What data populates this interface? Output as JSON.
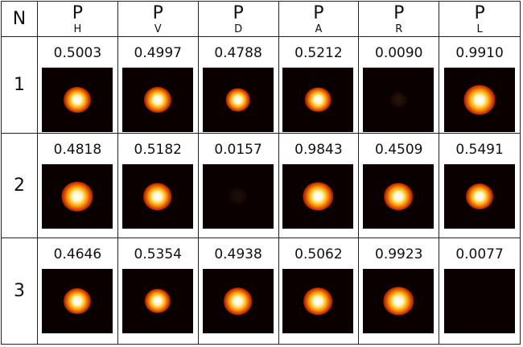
{
  "table": {
    "header": [
      {
        "symbol": "N"
      },
      {
        "symbol": "P",
        "subscript": "H"
      },
      {
        "symbol": "P",
        "subscript": "V"
      },
      {
        "symbol": "P",
        "subscript": "D"
      },
      {
        "symbol": "P",
        "subscript": "A"
      },
      {
        "symbol": "P",
        "subscript": "R"
      },
      {
        "symbol": "P",
        "subscript": "L"
      }
    ],
    "rows": [
      {
        "n": "1",
        "values": [
          "0.5003",
          "0.4997",
          "0.4788",
          "0.5212",
          "0.0090",
          "0.9910"
        ]
      },
      {
        "n": "2",
        "values": [
          "0.4818",
          "0.5182",
          "0.0157",
          "0.9843",
          "0.4509",
          "0.5491"
        ]
      },
      {
        "n": "3",
        "values": [
          "0.4646",
          "0.5354",
          "0.4938",
          "0.5062",
          "0.9923",
          "0.0077"
        ]
      }
    ]
  }
}
